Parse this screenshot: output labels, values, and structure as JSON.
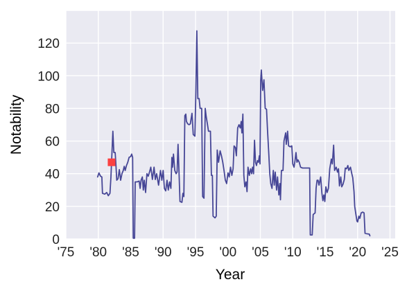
{
  "chart_data": {
    "type": "line",
    "title": "",
    "xlabel": "Year",
    "ylabel": "Notability",
    "xlim": [
      1975,
      2025.8
    ],
    "ylim": [
      0,
      140
    ],
    "grid": true,
    "legend_position": "none",
    "plot_bg_color": "#eaeaf2",
    "grid_color": "#ffffff",
    "text_color": "#222222",
    "x_ticks": [
      1975,
      1980,
      1985,
      1990,
      1995,
      2000,
      2005,
      2010,
      2015,
      2020,
      2025
    ],
    "x_tick_labels": [
      "'75",
      "'80",
      "'85",
      "'90",
      "'95",
      "'00",
      "'05",
      "'10",
      "'15",
      "'20",
      "'25"
    ],
    "y_ticks": [
      0,
      20,
      40,
      60,
      80,
      100,
      120
    ],
    "y_tick_labels": [
      "0",
      "20",
      "40",
      "60",
      "80",
      "100",
      "120"
    ],
    "y_gridlines": [
      0,
      20,
      40,
      60,
      80,
      100,
      120,
      140
    ],
    "highlight_point": {
      "x": 1982.05,
      "y": 47,
      "marker": "square",
      "color": "#fb4141"
    },
    "series": [
      {
        "name": "notability",
        "color": "#464696",
        "points": [
          [
            1979.9,
            38
          ],
          [
            1980.1,
            40.5
          ],
          [
            1980.35,
            38.5
          ],
          [
            1980.55,
            38
          ],
          [
            1980.65,
            28
          ],
          [
            1981.0,
            27.5
          ],
          [
            1981.3,
            28.5
          ],
          [
            1981.55,
            26.5
          ],
          [
            1981.8,
            28
          ],
          [
            1981.95,
            38
          ],
          [
            1982.05,
            47
          ],
          [
            1982.25,
            66
          ],
          [
            1982.4,
            53
          ],
          [
            1982.6,
            53
          ],
          [
            1982.7,
            47
          ],
          [
            1982.85,
            36
          ],
          [
            1983.05,
            37
          ],
          [
            1983.25,
            42.5
          ],
          [
            1983.45,
            36
          ],
          [
            1983.65,
            40
          ],
          [
            1983.85,
            42
          ],
          [
            1984.0,
            44.5
          ],
          [
            1984.15,
            42
          ],
          [
            1984.35,
            45
          ],
          [
            1984.55,
            47
          ],
          [
            1984.75,
            50
          ],
          [
            1985.0,
            50.5
          ],
          [
            1985.15,
            52
          ],
          [
            1985.3,
            50
          ],
          [
            1985.4,
            0.5
          ],
          [
            1985.6,
            0.5
          ],
          [
            1985.7,
            35
          ],
          [
            1986.0,
            35
          ],
          [
            1986.3,
            35.5
          ],
          [
            1986.45,
            31
          ],
          [
            1986.6,
            36
          ],
          [
            1986.8,
            38
          ],
          [
            1986.95,
            30
          ],
          [
            1987.1,
            36
          ],
          [
            1987.3,
            28.5
          ],
          [
            1987.5,
            40
          ],
          [
            1987.7,
            38.5
          ],
          [
            1987.9,
            41
          ],
          [
            1988.1,
            44
          ],
          [
            1988.35,
            36.5
          ],
          [
            1988.6,
            44
          ],
          [
            1988.8,
            36.5
          ],
          [
            1989.0,
            40
          ],
          [
            1989.3,
            33
          ],
          [
            1989.6,
            42
          ],
          [
            1989.8,
            36
          ],
          [
            1990.0,
            42
          ],
          [
            1990.2,
            31
          ],
          [
            1990.4,
            29.5
          ],
          [
            1990.6,
            36
          ],
          [
            1990.8,
            30
          ],
          [
            1991.0,
            35
          ],
          [
            1991.2,
            31
          ],
          [
            1991.35,
            50
          ],
          [
            1991.45,
            44
          ],
          [
            1991.6,
            52
          ],
          [
            1991.8,
            42
          ],
          [
            1992.0,
            40
          ],
          [
            1992.15,
            41
          ],
          [
            1992.3,
            58
          ],
          [
            1992.45,
            41
          ],
          [
            1992.6,
            23
          ],
          [
            1992.9,
            22.5
          ],
          [
            1993.05,
            28
          ],
          [
            1993.2,
            26
          ],
          [
            1993.35,
            75.5
          ],
          [
            1993.5,
            76.5
          ],
          [
            1993.6,
            72
          ],
          [
            1993.8,
            70.5
          ],
          [
            1994.0,
            70
          ],
          [
            1994.2,
            70.5
          ],
          [
            1994.45,
            77
          ],
          [
            1994.65,
            64
          ],
          [
            1994.9,
            63
          ],
          [
            1995.05,
            90
          ],
          [
            1995.2,
            127.5
          ],
          [
            1995.35,
            86
          ],
          [
            1995.55,
            86
          ],
          [
            1995.7,
            80
          ],
          [
            1995.95,
            80
          ],
          [
            1996.1,
            26
          ],
          [
            1996.3,
            25
          ],
          [
            1996.5,
            80
          ],
          [
            1996.65,
            75
          ],
          [
            1996.85,
            70
          ],
          [
            1997.0,
            66
          ],
          [
            1997.3,
            66
          ],
          [
            1997.45,
            39
          ],
          [
            1997.6,
            39
          ],
          [
            1997.7,
            14
          ],
          [
            1998.0,
            13
          ],
          [
            1998.2,
            14
          ],
          [
            1998.35,
            54.5
          ],
          [
            1998.55,
            47
          ],
          [
            1998.8,
            54
          ],
          [
            1999.0,
            51
          ],
          [
            1999.2,
            47
          ],
          [
            1999.4,
            42
          ],
          [
            1999.6,
            36
          ],
          [
            1999.8,
            34
          ],
          [
            2000.0,
            40.5
          ],
          [
            2000.2,
            38
          ],
          [
            2000.4,
            44
          ],
          [
            2000.6,
            39
          ],
          [
            2000.8,
            43
          ],
          [
            2000.95,
            57
          ],
          [
            2001.15,
            56
          ],
          [
            2001.3,
            51
          ],
          [
            2001.5,
            68
          ],
          [
            2001.7,
            70
          ],
          [
            2001.9,
            68
          ],
          [
            2002.05,
            72
          ],
          [
            2002.15,
            65
          ],
          [
            2002.3,
            76.5
          ],
          [
            2002.45,
            39
          ],
          [
            2002.6,
            32
          ],
          [
            2002.8,
            35
          ],
          [
            2002.95,
            29
          ],
          [
            2003.1,
            44
          ],
          [
            2003.3,
            39
          ],
          [
            2003.5,
            43
          ],
          [
            2003.65,
            40
          ],
          [
            2003.8,
            44
          ],
          [
            2003.95,
            40
          ],
          [
            2004.1,
            60.5
          ],
          [
            2004.25,
            47
          ],
          [
            2004.4,
            45
          ],
          [
            2004.55,
            48
          ],
          [
            2004.7,
            47
          ],
          [
            2004.85,
            51
          ],
          [
            2004.95,
            46
          ],
          [
            2005.05,
            97
          ],
          [
            2005.15,
            103.5
          ],
          [
            2005.35,
            91
          ],
          [
            2005.55,
            97.5
          ],
          [
            2005.75,
            80
          ],
          [
            2005.95,
            79.5
          ],
          [
            2006.1,
            67
          ],
          [
            2006.3,
            52
          ],
          [
            2006.45,
            40
          ],
          [
            2006.6,
            34
          ],
          [
            2006.8,
            31
          ],
          [
            2007.0,
            42
          ],
          [
            2007.15,
            33
          ],
          [
            2007.3,
            41
          ],
          [
            2007.5,
            30
          ],
          [
            2007.65,
            38
          ],
          [
            2007.85,
            27
          ],
          [
            2008.0,
            34
          ],
          [
            2008.1,
            24
          ],
          [
            2008.25,
            42
          ],
          [
            2008.5,
            42
          ],
          [
            2008.65,
            60
          ],
          [
            2008.9,
            65
          ],
          [
            2009.0,
            58
          ],
          [
            2009.2,
            66
          ],
          [
            2009.35,
            57
          ],
          [
            2009.6,
            56.5
          ],
          [
            2009.85,
            57
          ],
          [
            2010.0,
            46
          ],
          [
            2010.2,
            44
          ],
          [
            2010.35,
            48
          ],
          [
            2010.5,
            53
          ],
          [
            2010.65,
            47
          ],
          [
            2010.8,
            48.5
          ],
          [
            2011.0,
            47
          ],
          [
            2011.2,
            44
          ],
          [
            2011.5,
            43.5
          ],
          [
            2012.0,
            43.5
          ],
          [
            2012.6,
            43.5
          ],
          [
            2012.7,
            2.5
          ],
          [
            2013.0,
            2.5
          ],
          [
            2013.15,
            15
          ],
          [
            2013.45,
            16
          ],
          [
            2013.6,
            31
          ],
          [
            2013.75,
            36
          ],
          [
            2013.9,
            36
          ],
          [
            2014.05,
            33
          ],
          [
            2014.3,
            38
          ],
          [
            2014.5,
            28
          ],
          [
            2014.65,
            23.5
          ],
          [
            2014.8,
            27
          ],
          [
            2014.95,
            23
          ],
          [
            2015.1,
            32
          ],
          [
            2015.3,
            28.5
          ],
          [
            2015.5,
            31
          ],
          [
            2015.7,
            43
          ],
          [
            2015.95,
            49
          ],
          [
            2016.1,
            46
          ],
          [
            2016.3,
            57.5
          ],
          [
            2016.45,
            42
          ],
          [
            2016.7,
            44
          ],
          [
            2016.9,
            41
          ],
          [
            2017.05,
            43
          ],
          [
            2017.2,
            32.5
          ],
          [
            2017.4,
            38
          ],
          [
            2017.55,
            32
          ],
          [
            2017.75,
            33.5
          ],
          [
            2017.95,
            36.5
          ],
          [
            2018.1,
            43.5
          ],
          [
            2018.3,
            43
          ],
          [
            2018.5,
            45
          ],
          [
            2018.65,
            42
          ],
          [
            2018.9,
            44
          ],
          [
            2019.1,
            40
          ],
          [
            2019.25,
            37.5
          ],
          [
            2019.45,
            29
          ],
          [
            2019.55,
            20
          ],
          [
            2019.7,
            16
          ],
          [
            2019.9,
            11
          ],
          [
            2020.0,
            10.5
          ],
          [
            2020.2,
            14
          ],
          [
            2020.35,
            12.7
          ],
          [
            2020.55,
            16
          ],
          [
            2020.8,
            16.5
          ],
          [
            2021.0,
            16
          ],
          [
            2021.15,
            3.5
          ],
          [
            2021.5,
            3.2
          ],
          [
            2021.8,
            3
          ],
          [
            2021.9,
            2
          ]
        ]
      }
    ]
  }
}
